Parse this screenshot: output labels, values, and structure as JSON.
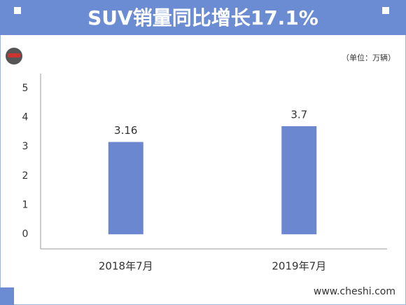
{
  "chart_data": {
    "type": "bar",
    "title": "SUV销量同比增长17.1%",
    "unit": "（单位：万辆）",
    "source": "www.cheshi.com",
    "categories": [
      "2018年7月",
      "2019年7月"
    ],
    "values": [
      3.16,
      3.7
    ],
    "color": "#6a87cf",
    "ylim": [
      -0.5,
      5.5
    ],
    "yticks": [
      0,
      1,
      2,
      3,
      4,
      5
    ],
    "grid": false
  }
}
